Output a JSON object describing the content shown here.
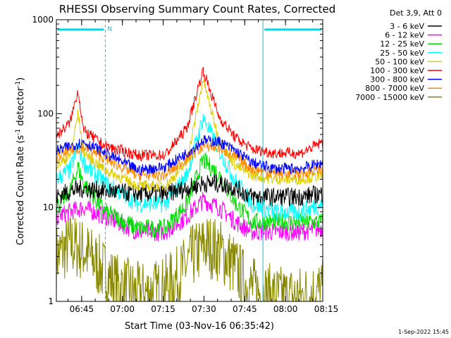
{
  "chart_data": {
    "type": "line",
    "title": "RHESSI Observing Summary Count Rates, Corrected",
    "xlabel": "Start Time (03-Nov-16 06:35:42)",
    "ylabel_main": "Corrected Count Rate (s",
    "ylabel_sup1": "-1",
    "ylabel_mid": " detector",
    "ylabel_sup2": "-1",
    "ylabel_end": ")",
    "yscale": "log",
    "ylim": [
      1,
      1000
    ],
    "yticks": [
      {
        "value": 1,
        "label": "1"
      },
      {
        "value": 10,
        "label": "10"
      },
      {
        "value": 100,
        "label": "100"
      },
      {
        "value": 1000,
        "label": "1000"
      }
    ],
    "xlim_minutes": [
      0,
      98
    ],
    "xticks": [
      {
        "minute": 9.3,
        "label": "06:45"
      },
      {
        "minute": 24.3,
        "label": "07:00"
      },
      {
        "minute": 39.3,
        "label": "07:15"
      },
      {
        "minute": 54.3,
        "label": "07:30"
      },
      {
        "minute": 69.3,
        "label": "07:45"
      },
      {
        "minute": 84.3,
        "label": "08:00"
      },
      {
        "minute": 99.3,
        "label": "08:15"
      }
    ],
    "legend_title": "Det 3,9, Att 0",
    "legend_position": "top-right (outside plot)",
    "markers": {
      "night_bars": [
        [
          0,
          18
        ],
        [
          76,
          98
        ]
      ],
      "saa_label": "N",
      "vertical_lines_minutes": [
        18,
        76,
        98
      ]
    },
    "series": [
      {
        "name": "3 - 6 keV",
        "color": "#000000",
        "x": [
          0,
          5,
          10,
          18,
          30,
          40,
          48,
          54,
          60,
          66,
          72,
          80,
          90,
          98
        ],
        "y": [
          13,
          15,
          16,
          15,
          14,
          14,
          16,
          18,
          18,
          16,
          13,
          13,
          13,
          14
        ]
      },
      {
        "name": "6 - 12 keV",
        "color": "#ff00ff",
        "x": [
          0,
          5,
          10,
          18,
          30,
          40,
          48,
          54,
          60,
          66,
          72,
          80,
          90,
          98
        ],
        "y": [
          8,
          9,
          10,
          8,
          5.5,
          5.5,
          8,
          12,
          10,
          7,
          5.5,
          5.5,
          5.5,
          6
        ]
      },
      {
        "name": "12 - 25 keV",
        "color": "#00dd00",
        "x": [
          0,
          5,
          8,
          10,
          12,
          18,
          30,
          40,
          48,
          54,
          60,
          66,
          72,
          80,
          90,
          98
        ],
        "y": [
          10,
          15,
          27,
          18,
          15,
          9,
          6,
          6,
          11,
          32,
          22,
          11,
          7,
          7,
          7,
          7
        ]
      },
      {
        "name": "25 - 50 keV",
        "color": "#00ffff",
        "x": [
          0,
          5,
          8,
          10,
          12,
          18,
          30,
          40,
          48,
          54,
          60,
          66,
          72,
          80,
          90,
          98
        ],
        "y": [
          20,
          25,
          45,
          30,
          26,
          18,
          11,
          11,
          22,
          90,
          40,
          19,
          11,
          9,
          9,
          11
        ]
      },
      {
        "name": "50 - 100 keV",
        "color": "#ddcc00",
        "x": [
          0,
          5,
          8,
          10,
          12,
          18,
          30,
          40,
          48,
          54,
          60,
          66,
          72,
          80,
          90,
          98
        ],
        "y": [
          28,
          35,
          100,
          40,
          34,
          25,
          17,
          17,
          30,
          230,
          50,
          28,
          22,
          20,
          20,
          22
        ]
      },
      {
        "name": "100 - 300 keV",
        "color": "#ff0000",
        "x": [
          0,
          5,
          8,
          10,
          12,
          18,
          30,
          40,
          48,
          54,
          60,
          66,
          72,
          80,
          90,
          98
        ],
        "y": [
          58,
          80,
          180,
          65,
          60,
          45,
          36,
          36,
          70,
          290,
          90,
          55,
          42,
          38,
          38,
          50
        ]
      },
      {
        "name": "300 - 800 keV",
        "color": "#0000ff",
        "x": [
          0,
          5,
          10,
          18,
          30,
          40,
          48,
          54,
          60,
          66,
          72,
          80,
          90,
          98
        ],
        "y": [
          40,
          45,
          50,
          38,
          25,
          27,
          38,
          52,
          50,
          40,
          30,
          26,
          26,
          30
        ]
      },
      {
        "name": "800 - 7000 keV",
        "color": "#ff8800",
        "x": [
          0,
          5,
          10,
          18,
          30,
          40,
          48,
          54,
          60,
          66,
          72,
          80,
          90,
          98
        ],
        "y": [
          34,
          40,
          44,
          33,
          22,
          22,
          33,
          45,
          43,
          34,
          26,
          23,
          23,
          26
        ]
      },
      {
        "name": "7000 - 15000 keV",
        "color": "#888800",
        "x": [
          0,
          5,
          10,
          15,
          22,
          30,
          38,
          45,
          50,
          55,
          60,
          65,
          70,
          76,
          82,
          90,
          98
        ],
        "y": [
          3,
          4,
          3.5,
          2.5,
          1.5,
          1.2,
          1.3,
          1.8,
          3,
          4,
          3.5,
          2.5,
          1.5,
          1.2,
          1.1,
          1.1,
          1.3
        ]
      }
    ],
    "footer_date": "1-Sep-2022 15:45"
  }
}
